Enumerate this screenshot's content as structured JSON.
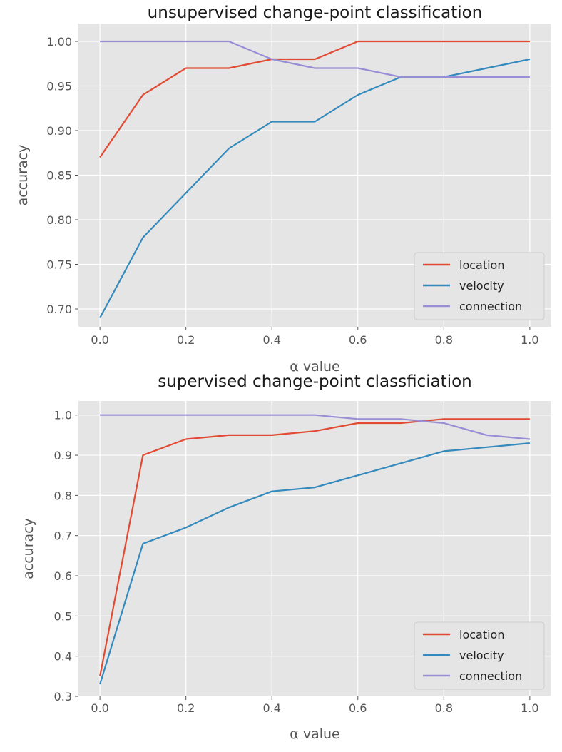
{
  "chart_data": [
    {
      "type": "line",
      "title": "unsupervised change-point classification",
      "xlabel": "α value",
      "ylabel": "accuracy",
      "xlim": [
        -0.05,
        1.05
      ],
      "ylim": [
        0.68,
        1.02
      ],
      "x": [
        0.0,
        0.1,
        0.2,
        0.3,
        0.4,
        0.5,
        0.6,
        0.7,
        0.8,
        0.9,
        1.0
      ],
      "xticks": [
        0.0,
        0.2,
        0.4,
        0.6,
        0.8,
        1.0
      ],
      "xtick_labels": [
        "0.0",
        "0.2",
        "0.4",
        "0.6",
        "0.8",
        "1.0"
      ],
      "yticks": [
        0.7,
        0.75,
        0.8,
        0.85,
        0.9,
        0.95,
        1.0
      ],
      "ytick_labels": [
        "0.70",
        "0.75",
        "0.80",
        "0.85",
        "0.90",
        "0.95",
        "1.00"
      ],
      "grid": true,
      "legend": "lower right",
      "series": [
        {
          "name": "location",
          "color": "#E24A33",
          "values": [
            0.87,
            0.94,
            0.97,
            0.97,
            0.98,
            0.98,
            1.0,
            1.0,
            1.0,
            1.0,
            1.0
          ]
        },
        {
          "name": "velocity",
          "color": "#348ABD",
          "values": [
            0.69,
            0.78,
            0.83,
            0.88,
            0.91,
            0.91,
            0.94,
            0.96,
            0.96,
            0.97,
            0.98
          ]
        },
        {
          "name": "connection",
          "color": "#988ED5",
          "values": [
            1.0,
            1.0,
            1.0,
            1.0,
            0.98,
            0.97,
            0.97,
            0.96,
            0.96,
            0.96,
            0.96
          ]
        }
      ]
    },
    {
      "type": "line",
      "title": "supervised change-point classficiation",
      "xlabel": "α value",
      "ylabel": "accuracy",
      "xlim": [
        -0.05,
        1.05
      ],
      "ylim": [
        0.3,
        1.035
      ],
      "x": [
        0.0,
        0.1,
        0.2,
        0.3,
        0.4,
        0.5,
        0.6,
        0.7,
        0.8,
        0.9,
        1.0
      ],
      "xticks": [
        0.0,
        0.2,
        0.4,
        0.6,
        0.8,
        1.0
      ],
      "xtick_labels": [
        "0.0",
        "0.2",
        "0.4",
        "0.6",
        "0.8",
        "1.0"
      ],
      "yticks": [
        0.3,
        0.4,
        0.5,
        0.6,
        0.7,
        0.8,
        0.9,
        1.0
      ],
      "ytick_labels": [
        "0.3",
        "0.4",
        "0.5",
        "0.6",
        "0.7",
        "0.8",
        "0.9",
        "1.0"
      ],
      "grid": true,
      "legend": "lower right",
      "series": [
        {
          "name": "location",
          "color": "#E24A33",
          "values": [
            0.35,
            0.9,
            0.94,
            0.95,
            0.95,
            0.96,
            0.98,
            0.98,
            0.99,
            0.99,
            0.99
          ]
        },
        {
          "name": "velocity",
          "color": "#348ABD",
          "values": [
            0.33,
            0.68,
            0.72,
            0.77,
            0.81,
            0.82,
            0.85,
            0.88,
            0.91,
            0.92,
            0.93
          ]
        },
        {
          "name": "connection",
          "color": "#988ED5",
          "values": [
            1.0,
            1.0,
            1.0,
            1.0,
            1.0,
            1.0,
            0.99,
            0.99,
            0.98,
            0.95,
            0.94
          ]
        }
      ]
    }
  ]
}
